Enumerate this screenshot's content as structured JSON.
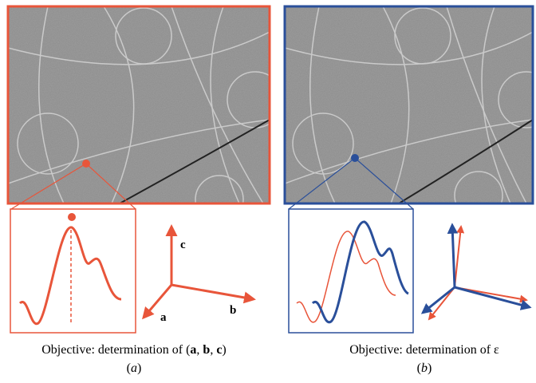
{
  "panels": [
    {
      "caption": [
        "Objective: determination of (",
        "a",
        ", ",
        "b",
        ", ",
        "c",
        ")"
      ],
      "label": [
        "(",
        "a",
        ")"
      ],
      "axes": [
        "a",
        "b",
        "c"
      ]
    },
    {
      "caption": [
        "Objective: determination of ε"
      ],
      "label": [
        "(",
        "b",
        ")"
      ]
    }
  ]
}
